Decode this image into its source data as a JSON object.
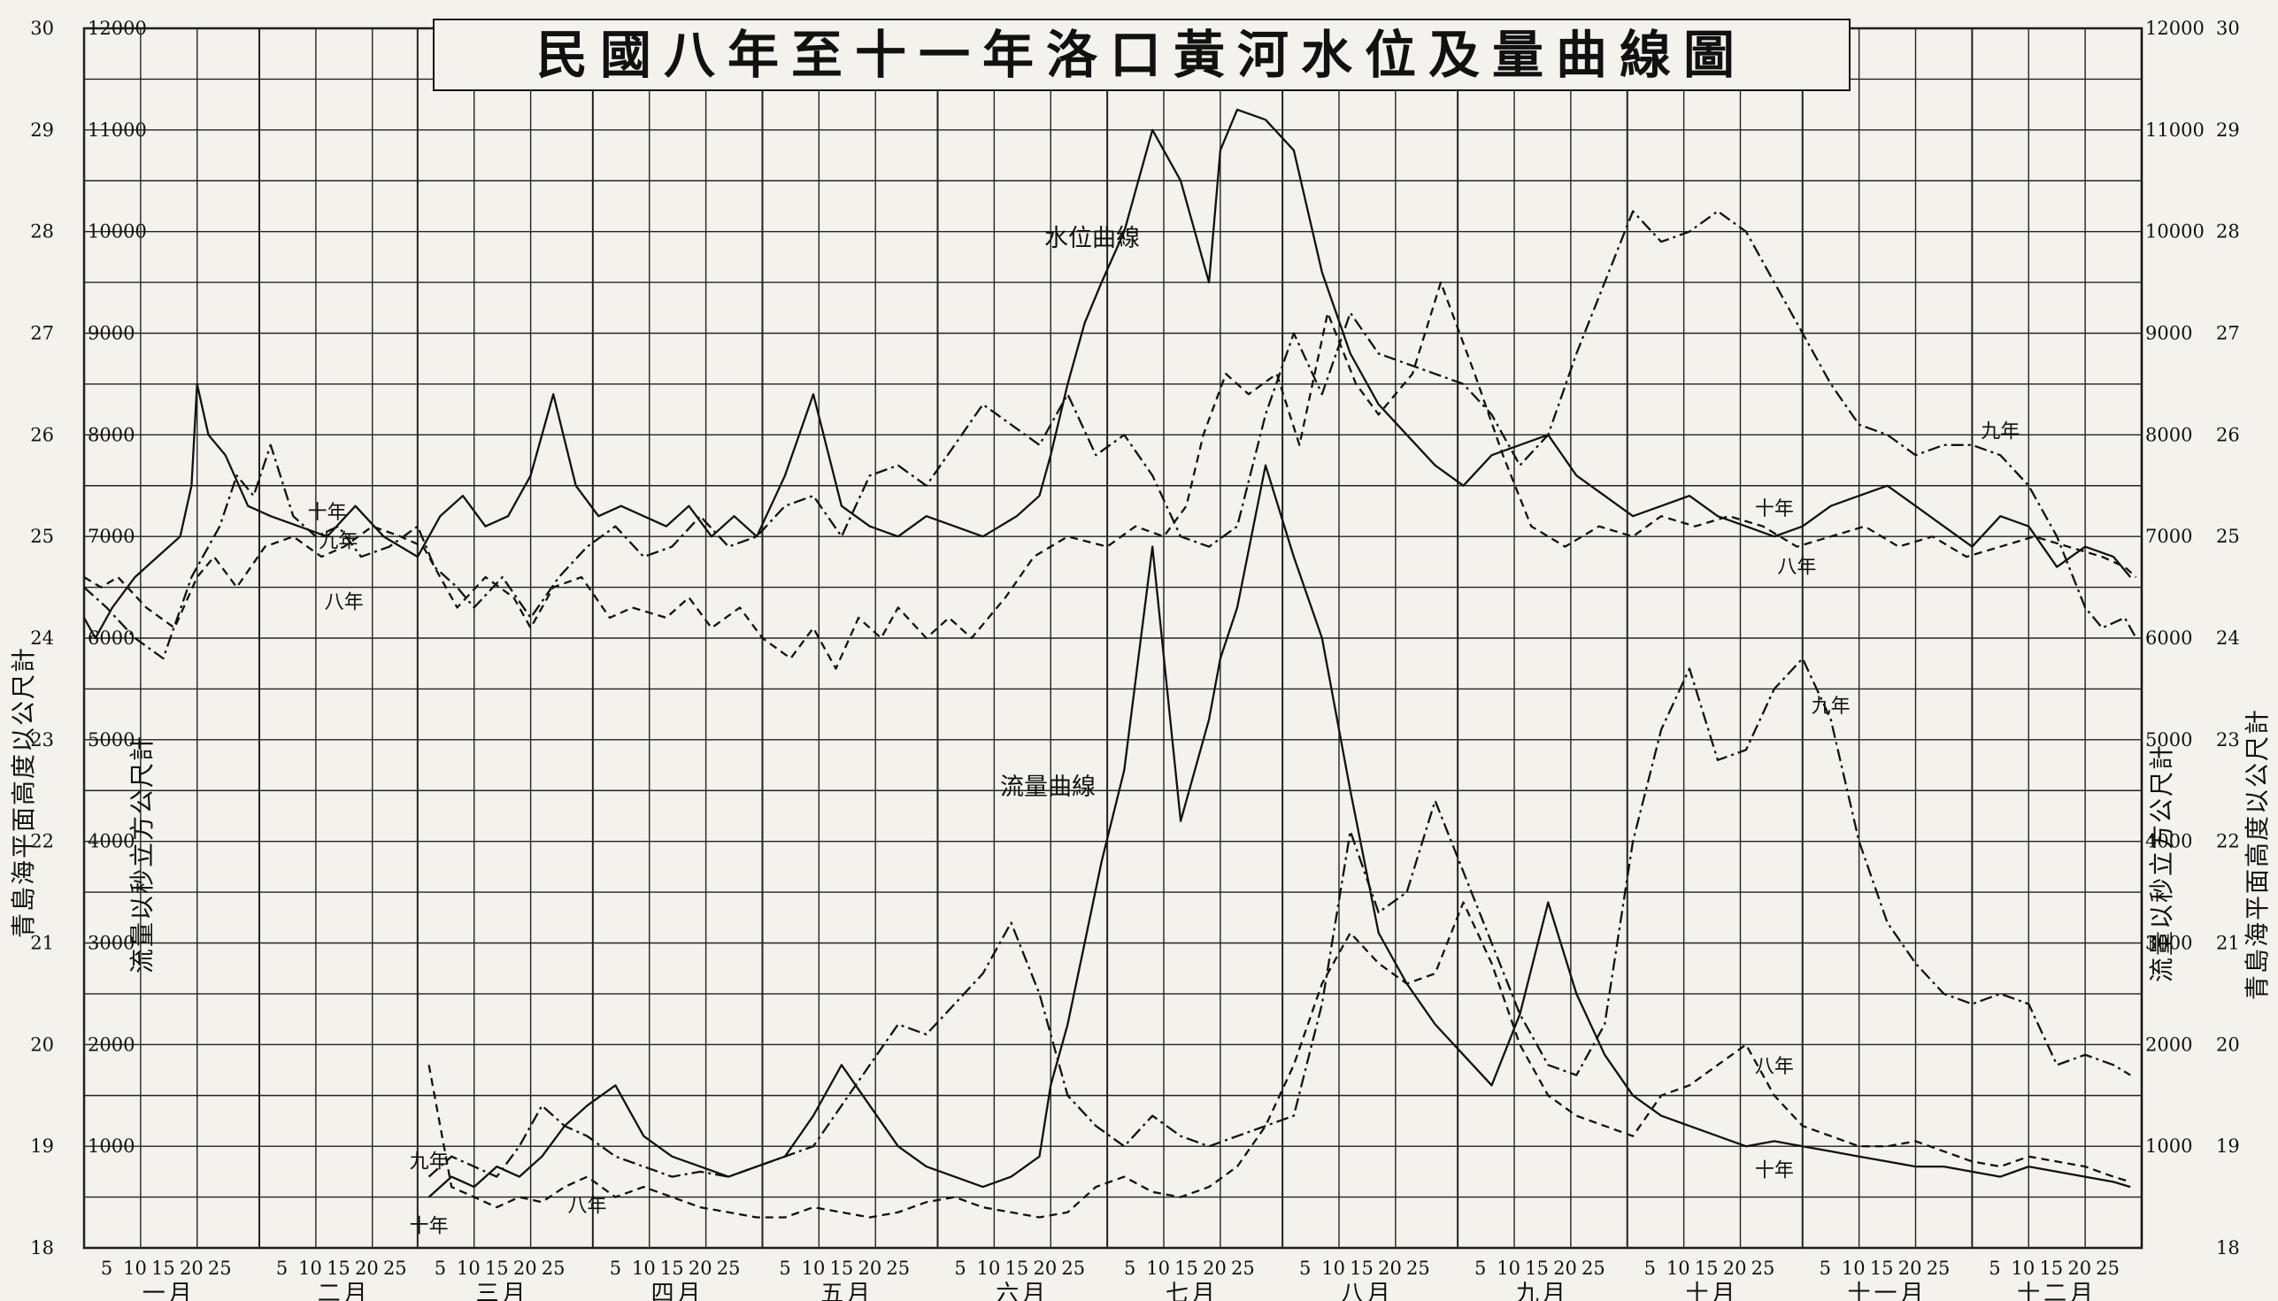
{
  "chart_data": {
    "type": "line",
    "title": "民國八年至十一年洛口黃河水位及量曲線圖",
    "xlabel": "",
    "months": [
      "一月",
      "二月",
      "三月",
      "四月",
      "五月",
      "六月",
      "七月",
      "八月",
      "九月",
      "十月",
      "十一月",
      "十二月"
    ],
    "day_ticks": [
      "5",
      "10",
      "15",
      "20",
      "25"
    ],
    "stage_axis": {
      "label": "青島海平面高度以公尺計",
      "ylim": [
        18,
        30
      ],
      "ticks": [
        "18",
        "19",
        "20",
        "21",
        "22",
        "23",
        "24",
        "25",
        "26",
        "27",
        "28",
        "29",
        "30"
      ]
    },
    "discharge_axis": {
      "label": "流量以秒立方公尺計",
      "ylim": [
        0,
        12000
      ],
      "ticks": [
        "1000",
        "2000",
        "3000",
        "4000",
        "5000",
        "6000",
        "7000",
        "8000",
        "9000",
        "10000",
        "11000",
        "12000"
      ]
    },
    "annotations": [
      "水位曲線",
      "流量曲線"
    ],
    "series": [
      {
        "name": "八年",
        "quantity": "stage",
        "style": "dashed",
        "x": [
          1,
          4,
          7,
          12,
          17,
          21,
          24,
          28,
          33,
          38,
          43,
          47,
          52,
          57,
          61,
          64,
          67,
          72,
          77,
          80,
          84,
          89,
          94,
          98,
          104,
          108,
          112,
          117,
          121,
          126,
          130,
          134,
          138,
          142,
          145,
          150,
          154,
          158,
          164,
          169,
          175,
          182,
          187,
          192,
          196,
          199,
          203,
          207,
          212,
          216,
          221,
          226,
          230,
          236,
          241,
          247,
          252,
          257,
          263,
          269,
          275,
          280,
          286,
          292,
          298,
          304,
          310,
          316,
          322,
          328,
          334,
          340,
          346,
          352,
          358,
          362,
          364
        ],
        "y": [
          24.6,
          24.5,
          24.6,
          24.3,
          24.1,
          24.6,
          24.8,
          24.5,
          24.9,
          25.0,
          24.8,
          24.9,
          25.1,
          25.0,
          24.9,
          24.6,
          24.3,
          24.6,
          24.4,
          24.1,
          24.5,
          24.6,
          24.2,
          24.3,
          24.2,
          24.4,
          24.1,
          24.3,
          24.0,
          23.8,
          24.1,
          23.7,
          24.2,
          24.0,
          24.3,
          24.0,
          24.2,
          24.0,
          24.4,
          24.8,
          25.0,
          24.9,
          25.1,
          25.0,
          25.3,
          26.0,
          26.6,
          26.4,
          26.6,
          25.9,
          27.2,
          26.5,
          26.2,
          26.6,
          27.5,
          26.6,
          25.8,
          25.1,
          24.9,
          25.1,
          25.0,
          25.2,
          25.1,
          25.2,
          25.1,
          24.9,
          25.0,
          25.1,
          24.9,
          25.0,
          24.8,
          24.9,
          25.0,
          24.9,
          24.8,
          24.7,
          24.6
        ]
      },
      {
        "name": "九年",
        "quantity": "stage",
        "style": "dash-dot",
        "x": [
          1,
          5,
          10,
          15,
          20,
          25,
          28,
          31,
          34,
          38,
          42,
          46,
          50,
          55,
          60,
          63,
          67,
          70,
          75,
          80,
          85,
          90,
          95,
          100,
          105,
          110,
          115,
          120,
          125,
          130,
          135,
          140,
          145,
          150,
          155,
          160,
          165,
          170,
          175,
          180,
          185,
          190,
          195,
          200,
          205,
          210,
          215,
          220,
          225,
          230,
          235,
          240,
          245,
          250,
          255,
          260,
          265,
          270,
          275,
          280,
          285,
          290,
          295,
          300,
          305,
          310,
          315,
          320,
          325,
          330,
          335,
          340,
          345,
          350,
          355,
          358,
          362,
          364
        ],
        "y": [
          24.5,
          24.3,
          24.0,
          23.8,
          24.6,
          25.1,
          25.6,
          25.4,
          25.9,
          25.2,
          25.0,
          25.1,
          24.8,
          24.9,
          25.1,
          24.7,
          24.5,
          24.3,
          24.6,
          24.2,
          24.6,
          24.9,
          25.1,
          24.8,
          24.9,
          25.2,
          24.9,
          25.0,
          25.3,
          25.4,
          25.0,
          25.6,
          25.7,
          25.5,
          25.9,
          26.3,
          26.1,
          25.9,
          26.4,
          25.8,
          26.0,
          25.6,
          25.0,
          24.9,
          25.1,
          26.2,
          27.0,
          26.4,
          27.2,
          26.8,
          26.7,
          26.6,
          26.5,
          26.2,
          25.7,
          26.0,
          26.8,
          27.5,
          28.2,
          27.9,
          28.0,
          28.2,
          28.0,
          27.5,
          27.0,
          26.5,
          26.1,
          26.0,
          25.8,
          25.9,
          25.9,
          25.8,
          25.5,
          25.0,
          24.3,
          24.1,
          24.2,
          24.0
        ]
      },
      {
        "name": "十年",
        "quantity": "stage",
        "style": "solid",
        "x": [
          1,
          3,
          6,
          10,
          14,
          18,
          20,
          21,
          23,
          26,
          30,
          34,
          39,
          44,
          49,
          54,
          60,
          64,
          68,
          72,
          76,
          80,
          84,
          88,
          92,
          96,
          100,
          104,
          108,
          112,
          116,
          120,
          125,
          130,
          135,
          140,
          145,
          150,
          155,
          160,
          163,
          166,
          170,
          172,
          175,
          178,
          181,
          185,
          190,
          195,
          200,
          202,
          205,
          210,
          215,
          220,
          225,
          230,
          235,
          240,
          245,
          250,
          255,
          260,
          265,
          270,
          275,
          280,
          285,
          290,
          295,
          300,
          305,
          310,
          315,
          320,
          325,
          330,
          335,
          340,
          345,
          350,
          355,
          360,
          363
        ],
        "y": [
          24.2,
          24.0,
          24.3,
          24.6,
          24.8,
          25.0,
          25.5,
          26.5,
          26.0,
          25.8,
          25.3,
          25.2,
          25.1,
          25.0,
          25.3,
          25.0,
          24.8,
          25.2,
          25.4,
          25.1,
          25.2,
          25.6,
          26.4,
          25.5,
          25.2,
          25.3,
          25.2,
          25.1,
          25.3,
          25.0,
          25.2,
          25.0,
          25.6,
          26.4,
          25.3,
          25.1,
          25.0,
          25.2,
          25.1,
          25.0,
          25.1,
          25.2,
          25.4,
          25.8,
          26.5,
          27.1,
          27.5,
          28.0,
          29.0,
          28.5,
          27.5,
          28.8,
          29.2,
          29.1,
          28.8,
          27.6,
          26.8,
          26.3,
          26.0,
          25.7,
          25.5,
          25.8,
          25.9,
          26.0,
          25.6,
          25.4,
          25.2,
          25.3,
          25.4,
          25.2,
          25.1,
          25.0,
          25.1,
          25.3,
          25.4,
          25.5,
          25.3,
          25.1,
          24.9,
          25.2,
          25.1,
          24.7,
          24.9,
          24.8,
          24.6
        ]
      },
      {
        "name": "八年",
        "quantity": "discharge",
        "style": "dashed",
        "x": [
          62,
          66,
          70,
          74,
          78,
          82,
          86,
          90,
          95,
          100,
          105,
          110,
          115,
          120,
          125,
          130,
          135,
          140,
          145,
          150,
          155,
          160,
          165,
          170,
          175,
          180,
          185,
          190,
          195,
          200,
          205,
          210,
          215,
          220,
          225,
          230,
          235,
          240,
          245,
          250,
          255,
          260,
          265,
          270,
          275,
          280,
          285,
          290,
          295,
          300,
          305,
          310,
          315,
          320,
          325,
          330,
          335,
          340,
          345,
          350,
          355,
          360,
          363
        ],
        "y": [
          1800,
          600,
          500,
          400,
          500,
          450,
          600,
          700,
          500,
          600,
          500,
          400,
          350,
          300,
          300,
          400,
          350,
          300,
          350,
          450,
          500,
          400,
          350,
          300,
          350,
          600,
          700,
          550,
          500,
          600,
          800,
          1200,
          1800,
          2600,
          3100,
          2800,
          2600,
          2700,
          3400,
          2800,
          2000,
          1500,
          1300,
          1200,
          1100,
          1500,
          1600,
          1800,
          2000,
          1500,
          1200,
          1100,
          1000,
          1000,
          1050,
          950,
          850,
          800,
          900,
          850,
          800,
          700,
          650
        ]
      },
      {
        "name": "九年",
        "quantity": "discharge",
        "style": "dash-dot",
        "x": [
          62,
          66,
          70,
          74,
          78,
          82,
          86,
          90,
          95,
          100,
          105,
          110,
          115,
          120,
          125,
          130,
          135,
          140,
          145,
          150,
          155,
          160,
          165,
          170,
          175,
          180,
          185,
          190,
          195,
          200,
          205,
          210,
          215,
          220,
          225,
          230,
          235,
          240,
          245,
          250,
          255,
          260,
          265,
          270,
          275,
          280,
          285,
          290,
          295,
          300,
          305,
          310,
          315,
          320,
          325,
          330,
          335,
          340,
          345,
          350,
          355,
          360,
          363
        ],
        "y": [
          700,
          900,
          800,
          700,
          1000,
          1400,
          1200,
          1100,
          900,
          800,
          700,
          750,
          700,
          800,
          900,
          1000,
          1400,
          1800,
          2200,
          2100,
          2400,
          2700,
          3200,
          2500,
          1500,
          1200,
          1000,
          1300,
          1100,
          1000,
          1100,
          1200,
          1300,
          2400,
          4100,
          3300,
          3500,
          4400,
          3700,
          3000,
          2300,
          1800,
          1700,
          2200,
          4000,
          5100,
          5700,
          4800,
          4900,
          5500,
          5800,
          5200,
          4000,
          3200,
          2800,
          2500,
          2400,
          2500,
          2400,
          1800,
          1900,
          1800,
          1700
        ]
      },
      {
        "name": "十年",
        "quantity": "discharge",
        "style": "solid",
        "x": [
          62,
          66,
          70,
          74,
          78,
          82,
          86,
          90,
          95,
          100,
          105,
          110,
          115,
          120,
          125,
          130,
          135,
          140,
          145,
          150,
          155,
          160,
          165,
          170,
          172,
          175,
          178,
          181,
          185,
          190,
          195,
          200,
          202,
          205,
          210,
          215,
          220,
          225,
          230,
          235,
          240,
          245,
          250,
          255,
          260,
          265,
          270,
          275,
          280,
          285,
          290,
          295,
          300,
          305,
          310,
          315,
          320,
          325,
          330,
          335,
          340,
          345,
          350,
          355,
          360,
          363
        ],
        "y": [
          500,
          700,
          600,
          800,
          700,
          900,
          1200,
          1400,
          1600,
          1100,
          900,
          800,
          700,
          800,
          900,
          1300,
          1800,
          1400,
          1000,
          800,
          700,
          600,
          700,
          900,
          1600,
          2200,
          3000,
          3800,
          4700,
          6900,
          4200,
          5200,
          5800,
          6300,
          7700,
          6800,
          6000,
          4500,
          3100,
          2600,
          2200,
          1900,
          1600,
          2300,
          3400,
          2500,
          1900,
          1500,
          1300,
          1200,
          1100,
          1000,
          1050,
          1000,
          950,
          900,
          850,
          800,
          800,
          750,
          700,
          800,
          750,
          700,
          650,
          600
        ]
      }
    ]
  }
}
